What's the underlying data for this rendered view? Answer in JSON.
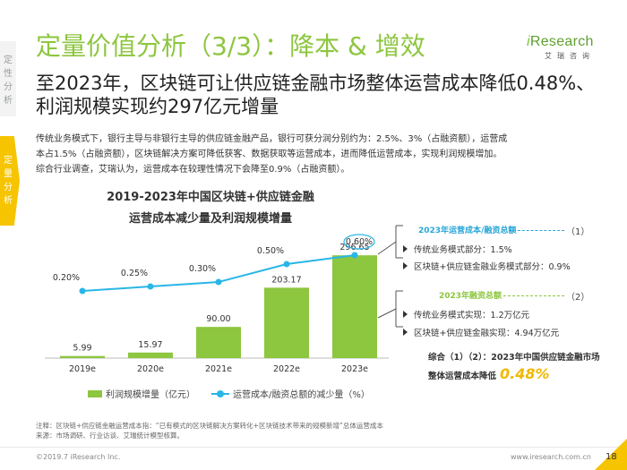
{
  "side_tabs": {
    "qualitative": "定\n性\n分\n析",
    "quantitative": "定\n量\n分\n析"
  },
  "title": "定量价值分析（3/3）：降本 & 增效",
  "logo": {
    "mark_i": "i",
    "mark_rest": "Research",
    "sub": "艾瑞咨询"
  },
  "headline": "至2023年，区块链可让供应链金融市场整体运营成本降低0.48%、利润规模实现约297亿元增量",
  "paragraph": {
    "line1": "传统业务模式下，银行主导与非银行主导的供应链金融产品，银行可获分润分别约为：2.5%、3%（占融资额），运营成",
    "line2": "本占1.5%（占融资额），区块链解决方案可降低获客、数据获取等运营成本，进而降低运营成本，实现利润规模增加。",
    "line3": "综合行业调查，艾瑞认为，运营成本在较理性情况下会降至0.9%（占融资额）。"
  },
  "chart_data": {
    "type": "bar",
    "title_line1": "2019-2023年中国区块链+供应链金融",
    "title_line2": "运营成本减少量及利润规模增量",
    "categories": [
      "2019e",
      "2020e",
      "2021e",
      "2022e",
      "2023e"
    ],
    "series": [
      {
        "name": "利润规模增量（亿元）",
        "type": "bar",
        "values": [
          5.99,
          15.97,
          90.0,
          203.17,
          296.65
        ],
        "labels": [
          "5.99",
          "15.97",
          "90.00",
          "203.17",
          "296.65"
        ]
      },
      {
        "name": "运营成本/融资总额的减少量（%）",
        "type": "line",
        "values": [
          0.2,
          0.25,
          0.3,
          0.5,
          0.6
        ],
        "labels": [
          "0.20%",
          "0.25%",
          "0.30%",
          "0.50%",
          "0.60%"
        ]
      }
    ],
    "colors": {
      "bar": "#8dc63f",
      "line": "#29b6e6"
    },
    "highlighted_point": "0.60%"
  },
  "right_panel": {
    "section1": {
      "head": "2023年运营成本/融资总额",
      "num": "（1）",
      "items": [
        "传统业务模式部分：1.5%",
        "区块链+供应链金融业务模式部分：0.9%"
      ]
    },
    "section2": {
      "head": "2023年融资总额",
      "num": "（2）",
      "items": [
        "传统业务模式实现：1.2万亿元",
        "区块链+供应链金融实现：4.94万亿元"
      ]
    },
    "summary_line1": "综合（1）（2）：2023年中国供应链金融市场",
    "summary_line2": "整体运营成本降低",
    "summary_value": "0.48%"
  },
  "notes": {
    "note": "注释：区块链+供应链金融运营成本指：“已有模式的区块链解决方案转化+区块链技术带来的规模新增”总体运营成本",
    "source": "来源：市场调研、行业访谈、艾瑞统计模型核算。"
  },
  "footer": {
    "copyright": "©2019.7 iResearch Inc.",
    "url": "www.iresearch.com.cn",
    "page": "18"
  }
}
